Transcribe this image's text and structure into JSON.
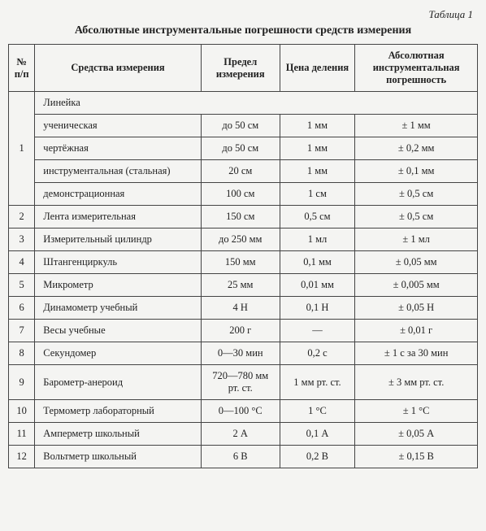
{
  "caption": "Таблица 1",
  "title": "Абсолютные инструментальные погрешности средств измерения",
  "headers": {
    "num": "№ п/п",
    "name": "Средства измерения",
    "limit": "Предел измерения",
    "division": "Цена деления",
    "error": "Абсолютная инструментальная погрешность"
  },
  "group1": {
    "num": "1",
    "title": "Линейка",
    "items": [
      {
        "name": "ученическая",
        "limit": "до 50 см",
        "div": "1 мм",
        "err": "± 1 мм"
      },
      {
        "name": "чертёжная",
        "limit": "до 50 см",
        "div": "1 мм",
        "err": "± 0,2 мм"
      },
      {
        "name": "инструментальная (стальная)",
        "limit": "20 см",
        "div": "1 мм",
        "err": "± 0,1 мм"
      },
      {
        "name": "демонстрационная",
        "limit": "100 см",
        "div": "1 см",
        "err": "± 0,5 см"
      }
    ]
  },
  "rows": [
    {
      "num": "2",
      "name": "Лента измерительная",
      "limit": "150 см",
      "div": "0,5 см",
      "err": "± 0,5 см"
    },
    {
      "num": "3",
      "name": "Измерительный цилиндр",
      "limit": "до 250 мм",
      "div": "1 мл",
      "err": "± 1 мл"
    },
    {
      "num": "4",
      "name": "Штангенциркуль",
      "limit": "150 мм",
      "div": "0,1 мм",
      "err": "± 0,05 мм"
    },
    {
      "num": "5",
      "name": "Микрометр",
      "limit": "25 мм",
      "div": "0,01 мм",
      "err": "± 0,005 мм"
    },
    {
      "num": "6",
      "name": "Динамометр учебный",
      "limit": "4 Н",
      "div": "0,1 Н",
      "err": "± 0,05 Н"
    },
    {
      "num": "7",
      "name": "Весы учебные",
      "limit": "200 г",
      "div": "—",
      "err": "± 0,01 г"
    },
    {
      "num": "8",
      "name": "Секундомер",
      "limit": "0—30 мин",
      "div": "0,2 с",
      "err": "± 1 с за 30 мин"
    },
    {
      "num": "9",
      "name": "Барометр-анероид",
      "limit": "720—780 мм рт. ст.",
      "div": "1 мм рт. ст.",
      "err": "± 3 мм рт. ст."
    },
    {
      "num": "10",
      "name": "Термометр лабораторный",
      "limit": "0—100 °C",
      "div": "1 °C",
      "err": "± 1 °C"
    },
    {
      "num": "11",
      "name": "Амперметр школьный",
      "limit": "2 А",
      "div": "0,1 А",
      "err": "± 0,05 А"
    },
    {
      "num": "12",
      "name": "Вольтметр школьный",
      "limit": "6 В",
      "div": "0,2 В",
      "err": "± 0,15 В"
    }
  ]
}
